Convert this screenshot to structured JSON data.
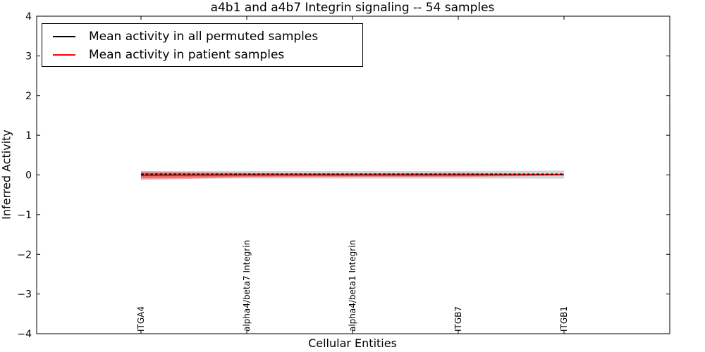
{
  "chart_data": {
    "type": "line",
    "title": "a4b1 and a4b7 Integrin signaling -- 54 samples",
    "xlabel": "Cellular Entities",
    "ylabel": "Inferred Activity",
    "ylim": [
      -4,
      4
    ],
    "yticks": [
      4,
      3,
      2,
      1,
      0,
      -1,
      -2,
      -3,
      -4
    ],
    "ytick_labels": [
      "4",
      "3",
      "2",
      "1",
      "0",
      "−1",
      "−2",
      "−3",
      "−4"
    ],
    "categories": [
      "ITGA4",
      "alpha4/beta7 Integrin",
      "alpha4/beta1 Integrin",
      "ITGB7",
      "ITGB1"
    ],
    "grid": false,
    "tick_direction": "in",
    "series": [
      {
        "name": "Mean activity in all permuted samples",
        "color": "#000000",
        "linestyle": "dashed",
        "values": [
          0.02,
          0.02,
          0.02,
          0.02,
          0.02
        ]
      },
      {
        "name": "Mean activity in patient samples",
        "color": "#ff0000",
        "linestyle": "solid",
        "values": [
          -0.01,
          0.0,
          0.0,
          0.0,
          0.01
        ]
      }
    ],
    "bands": [
      {
        "label": "permuted-samples-std-band",
        "color": "#999999",
        "opacity": 0.4,
        "upper": [
          0.1,
          0.1,
          0.1,
          0.1,
          0.11
        ],
        "lower": [
          -0.09,
          -0.09,
          -0.09,
          -0.09,
          -0.09
        ]
      },
      {
        "label": "patient-samples-outer-band",
        "color": "#ff0000",
        "opacity": 0.28,
        "upper": [
          0.09,
          0.05,
          0.045,
          0.05,
          0.02
        ],
        "lower": [
          -0.13,
          -0.06,
          -0.05,
          -0.05,
          -0.02
        ]
      },
      {
        "label": "patient-samples-inner-band",
        "color": "#ff0000",
        "opacity": 0.3,
        "upper": [
          0.05,
          0.035,
          0.03,
          0.03,
          0.012
        ],
        "lower": [
          -0.08,
          -0.04,
          -0.035,
          -0.035,
          -0.012
        ]
      }
    ],
    "legend": {
      "position": "upper left",
      "entries": [
        "Mean activity in all permuted samples",
        "Mean activity in patient samples"
      ]
    }
  }
}
